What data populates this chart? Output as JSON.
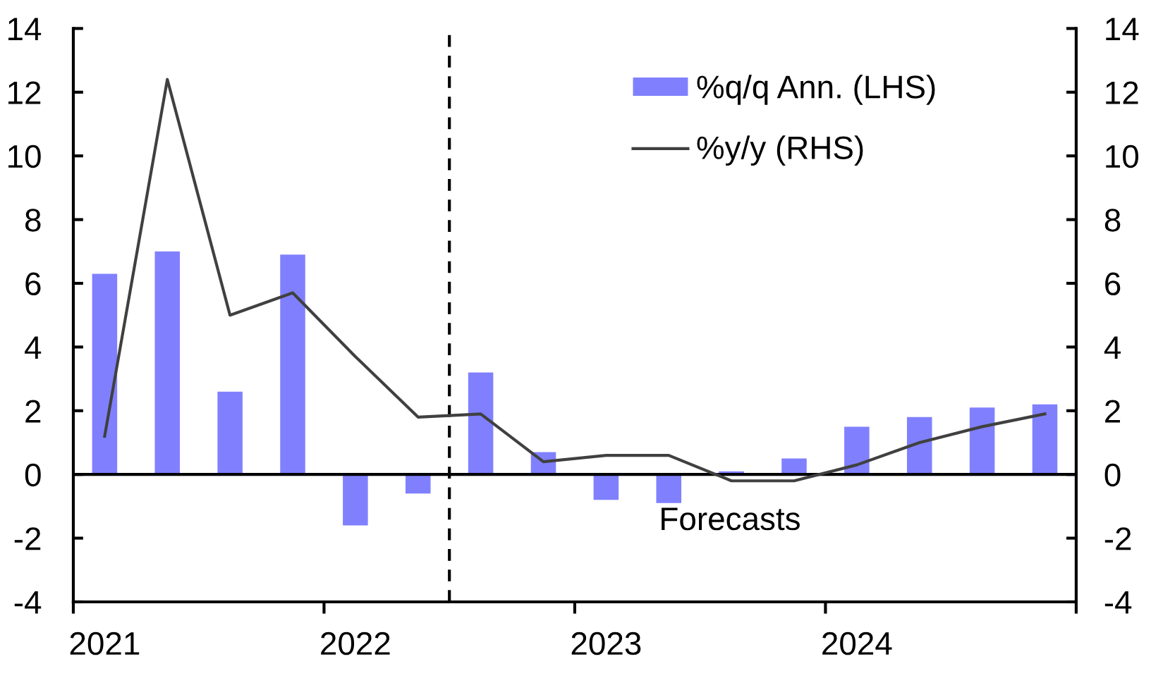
{
  "chart_data": {
    "type": "bar",
    "x": [
      2021,
      2021.25,
      2021.5,
      2021.75,
      2022,
      2022.25,
      2022.5,
      2022.75,
      2023,
      2023.25,
      2023.5,
      2023.75,
      2024,
      2024.25,
      2024.5,
      2024.75
    ],
    "xlim": [
      2020.875,
      2024.875
    ],
    "xticks": [
      {
        "value": 2020.875,
        "label": null
      },
      2021,
      {
        "value": 2021.875,
        "label": null
      },
      2022,
      {
        "value": 2022.875,
        "label": null
      },
      2023,
      {
        "value": 2023.875,
        "label": null
      },
      2024,
      {
        "value": 2024.875,
        "label": null
      }
    ],
    "ylim": [
      -4,
      14
    ],
    "yticks": [
      -4,
      -2,
      0,
      2,
      4,
      6,
      8,
      10,
      12,
      14
    ],
    "y2lim": [
      -4,
      14
    ],
    "y2ticks": [
      -4,
      -2,
      0,
      2,
      4,
      6,
      8,
      10,
      12,
      14
    ],
    "series": [
      {
        "name": "%q/q Ann. (LHS)",
        "color": "#8080ff",
        "values": [
          6.3,
          7.0,
          2.6,
          6.9,
          -1.6,
          -0.6,
          3.2,
          0.7,
          -0.8,
          -0.9,
          0.1,
          0.5,
          1.5,
          1.8,
          2.1,
          2.2
        ]
      },
      {
        "name": "%y/y (RHS)",
        "type": "line",
        "axis": "y2",
        "color": "#404040",
        "values": [
          1.2,
          12.4,
          5.0,
          5.7,
          3.7,
          1.8,
          1.9,
          0.4,
          0.6,
          0.6,
          -0.2,
          -0.2,
          0.3,
          1.0,
          1.5,
          1.9
        ]
      }
    ],
    "ref_lines": [
      {
        "axis": "x",
        "value": 2022.375,
        "color": "#000000",
        "line_style": "dashed"
      },
      {
        "axis": "y",
        "value": 0,
        "color": "#000000",
        "line_style": "solid"
      }
    ],
    "annotations": [
      "Forecasts"
    ],
    "legend": "top right"
  }
}
